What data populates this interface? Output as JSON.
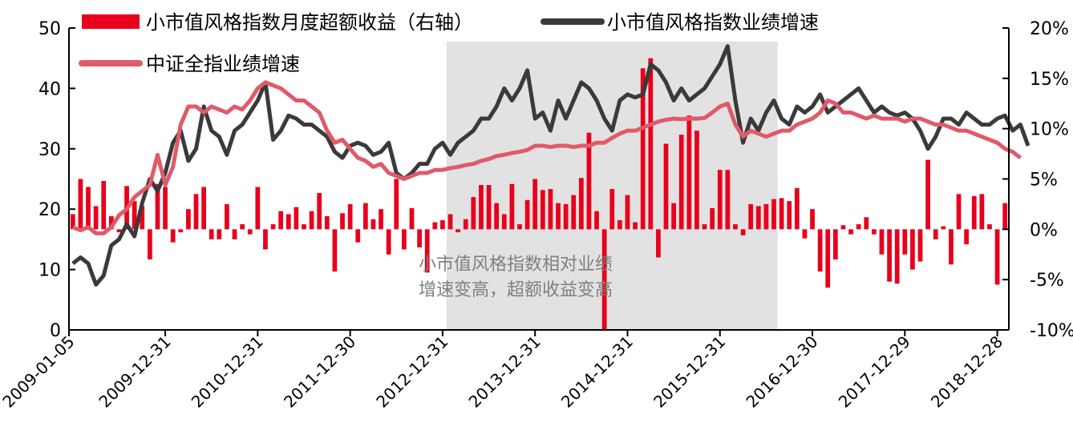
{
  "chart_data": {
    "type": "bar+line",
    "title": "",
    "x_tick_labels": [
      "2009-01-05",
      "2009-12-31",
      "2010-12-31",
      "2011-12-30",
      "2012-12-31",
      "2013-12-31",
      "2014-12-31",
      "2015-12-31",
      "2016-12-30",
      "2017-12-29",
      "2018-12-28"
    ],
    "left_axis": {
      "ylim": [
        0,
        50
      ],
      "ticks": [
        "0",
        "10",
        "20",
        "30",
        "40",
        "50"
      ]
    },
    "right_axis": {
      "ylim": [
        -10,
        20
      ],
      "ticks": [
        "-10%",
        "-5%",
        "0%",
        "5%",
        "10%",
        "15%",
        "20%"
      ]
    },
    "series": [
      {
        "name": "小市值风格指数月度超额收益（右轴）",
        "type": "bar",
        "axis": "right",
        "color": "#e8001c",
        "unit": "%",
        "values": [
          1.5,
          5.0,
          4.2,
          2.3,
          4.8,
          1.3,
          -0.3,
          4.3,
          2.8,
          2.3,
          -3.0,
          4.5,
          4.2,
          -1.3,
          -0.3,
          2.0,
          3.5,
          4.2,
          -1.0,
          -1.0,
          2.5,
          -1.0,
          0.5,
          -0.5,
          4.2,
          -2.0,
          0.5,
          1.8,
          1.5,
          2.2,
          0.5,
          1.8,
          3.6,
          1.3,
          -4.2,
          1.6,
          2.5,
          -1.3,
          2.6,
          1.0,
          2.0,
          -2.5,
          5.0,
          -2.0,
          2.1,
          -1.8,
          -4.3,
          0.7,
          0.9,
          1.5,
          -0.3,
          1.0,
          3.2,
          4.4,
          4.4,
          2.6,
          1.5,
          4.5,
          0.5,
          2.9,
          5.0,
          3.9,
          4.0,
          2.6,
          2.5,
          3.4,
          5.1,
          9.6,
          1.8,
          -10.0,
          4.0,
          0.9,
          3.4,
          0.7,
          16.0,
          17.0,
          -2.8,
          8.5,
          2.6,
          9.4,
          11.3,
          9.8,
          0.5,
          2.1,
          5.9,
          5.9,
          0.5,
          -0.6,
          2.5,
          2.3,
          2.5,
          3.0,
          3.1,
          2.8,
          4.1,
          -0.9,
          2.0,
          -4.2,
          -5.8,
          -3.0,
          0.4,
          -0.5,
          0.5,
          1.2,
          -0.5,
          -2.5,
          -5.2,
          -5.4,
          -2.5,
          -4.0,
          -3.2,
          6.9,
          -1.0,
          0.3,
          -3.5,
          3.5,
          -1.5,
          3.3,
          3.5,
          0.5,
          -5.5,
          2.6
        ]
      },
      {
        "name": "小市值风格指数业绩增速",
        "type": "line",
        "axis": "left",
        "color": "#3a3a3a",
        "unit": "",
        "values": [
          11,
          12,
          11,
          7.5,
          9,
          14,
          15,
          17.5,
          15.5,
          21,
          25,
          23,
          26,
          31,
          33,
          28,
          30,
          37,
          33,
          32,
          29,
          33,
          34,
          36,
          38,
          41,
          31.5,
          33,
          35.5,
          35,
          34,
          34,
          33,
          32,
          29.5,
          28.5,
          30.5,
          31,
          30.5,
          29,
          29.5,
          31,
          26,
          25,
          26,
          27.5,
          27.5,
          30,
          31,
          29,
          31,
          32,
          33,
          35,
          35,
          37,
          40,
          38,
          40,
          43,
          35,
          36,
          33,
          38,
          35,
          38,
          41,
          40,
          38,
          35,
          33,
          38,
          39,
          38.5,
          39,
          44,
          43,
          41,
          38,
          40,
          38,
          39,
          40,
          42,
          44,
          47,
          38,
          31,
          35,
          33,
          36,
          38,
          35,
          34,
          37,
          36,
          37,
          39,
          36,
          37,
          38,
          39,
          40,
          38,
          36,
          37,
          36,
          35.5,
          36,
          35,
          33,
          30,
          32,
          35,
          35,
          34,
          36,
          35,
          34,
          34,
          35,
          35.5,
          33,
          34,
          30.5
        ]
      },
      {
        "name": "中证全指业绩增速",
        "type": "line",
        "axis": "left",
        "color": "#e05a6a",
        "unit": "",
        "values": [
          17,
          16.5,
          17,
          16,
          16,
          17,
          19,
          20,
          22,
          23,
          24,
          29,
          24,
          27,
          34,
          37,
          37,
          36,
          37,
          36.5,
          36,
          37,
          36.5,
          38,
          40,
          41,
          40.5,
          40,
          39,
          38,
          38,
          37,
          36,
          33,
          31,
          31.5,
          30,
          28.5,
          28,
          27,
          27.5,
          26,
          25.5,
          25,
          25.5,
          26,
          26,
          26.5,
          26.5,
          26.8,
          27,
          27.3,
          27.5,
          28,
          28.3,
          28.8,
          29,
          29.3,
          29.5,
          29.8,
          30.5,
          30.5,
          30.3,
          30.5,
          30.5,
          30.3,
          30.5,
          30.5,
          31,
          31,
          31.8,
          32.5,
          33,
          33,
          33.5,
          34,
          34.5,
          34.8,
          35,
          34.9,
          35,
          35,
          35.1,
          36,
          37,
          37.5,
          34,
          32,
          33,
          32.5,
          32,
          32.5,
          33,
          33,
          34,
          34.5,
          35,
          36,
          38,
          37.5,
          36,
          36,
          35.5,
          35,
          35.5,
          35,
          35,
          35,
          34.5,
          35,
          35,
          34.5,
          34,
          34,
          33.5,
          33,
          33,
          32.5,
          32,
          31.5,
          31,
          30,
          29.5,
          28.5
        ]
      }
    ],
    "annotation": {
      "lines": [
        "小市值风格指数相对业绩",
        "增速变高，超额收益变高"
      ],
      "highlight_index_range": [
        49,
        92
      ]
    },
    "legend": "top-left",
    "grid": false
  }
}
